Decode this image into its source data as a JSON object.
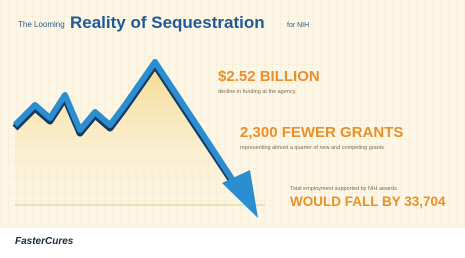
{
  "header": {
    "lead": "The Looming",
    "title": "Reality of Sequestration",
    "tail": "for NIH"
  },
  "facts": [
    {
      "headline": "$2.52 BILLION",
      "detail": "decline in funding at the agency."
    },
    {
      "headline": "2,300 FEWER GRANTS",
      "detail": "representing almost a quarter of new and competing grants"
    },
    {
      "detail": "Total employment supported by NIH awards",
      "headline": "WOULD FALL BY 33,704"
    }
  ],
  "footer": {
    "logo": "FasterCures"
  }
}
